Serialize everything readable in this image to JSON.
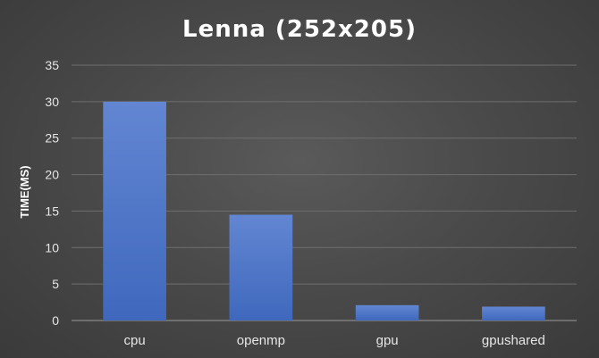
{
  "chart_data": {
    "type": "bar",
    "title": "Lenna (252x205)",
    "xlabel": "",
    "ylabel": "TIME(MS)",
    "categories": [
      "cpu",
      "openmp",
      "gpu",
      "gpushared"
    ],
    "values": [
      30,
      14.5,
      2.1,
      1.9
    ],
    "ylim": [
      0,
      35
    ],
    "yticks": [
      0,
      5,
      10,
      15,
      20,
      25,
      30,
      35
    ],
    "grid": true,
    "legend": "none",
    "bar_color": "#4472c4"
  }
}
